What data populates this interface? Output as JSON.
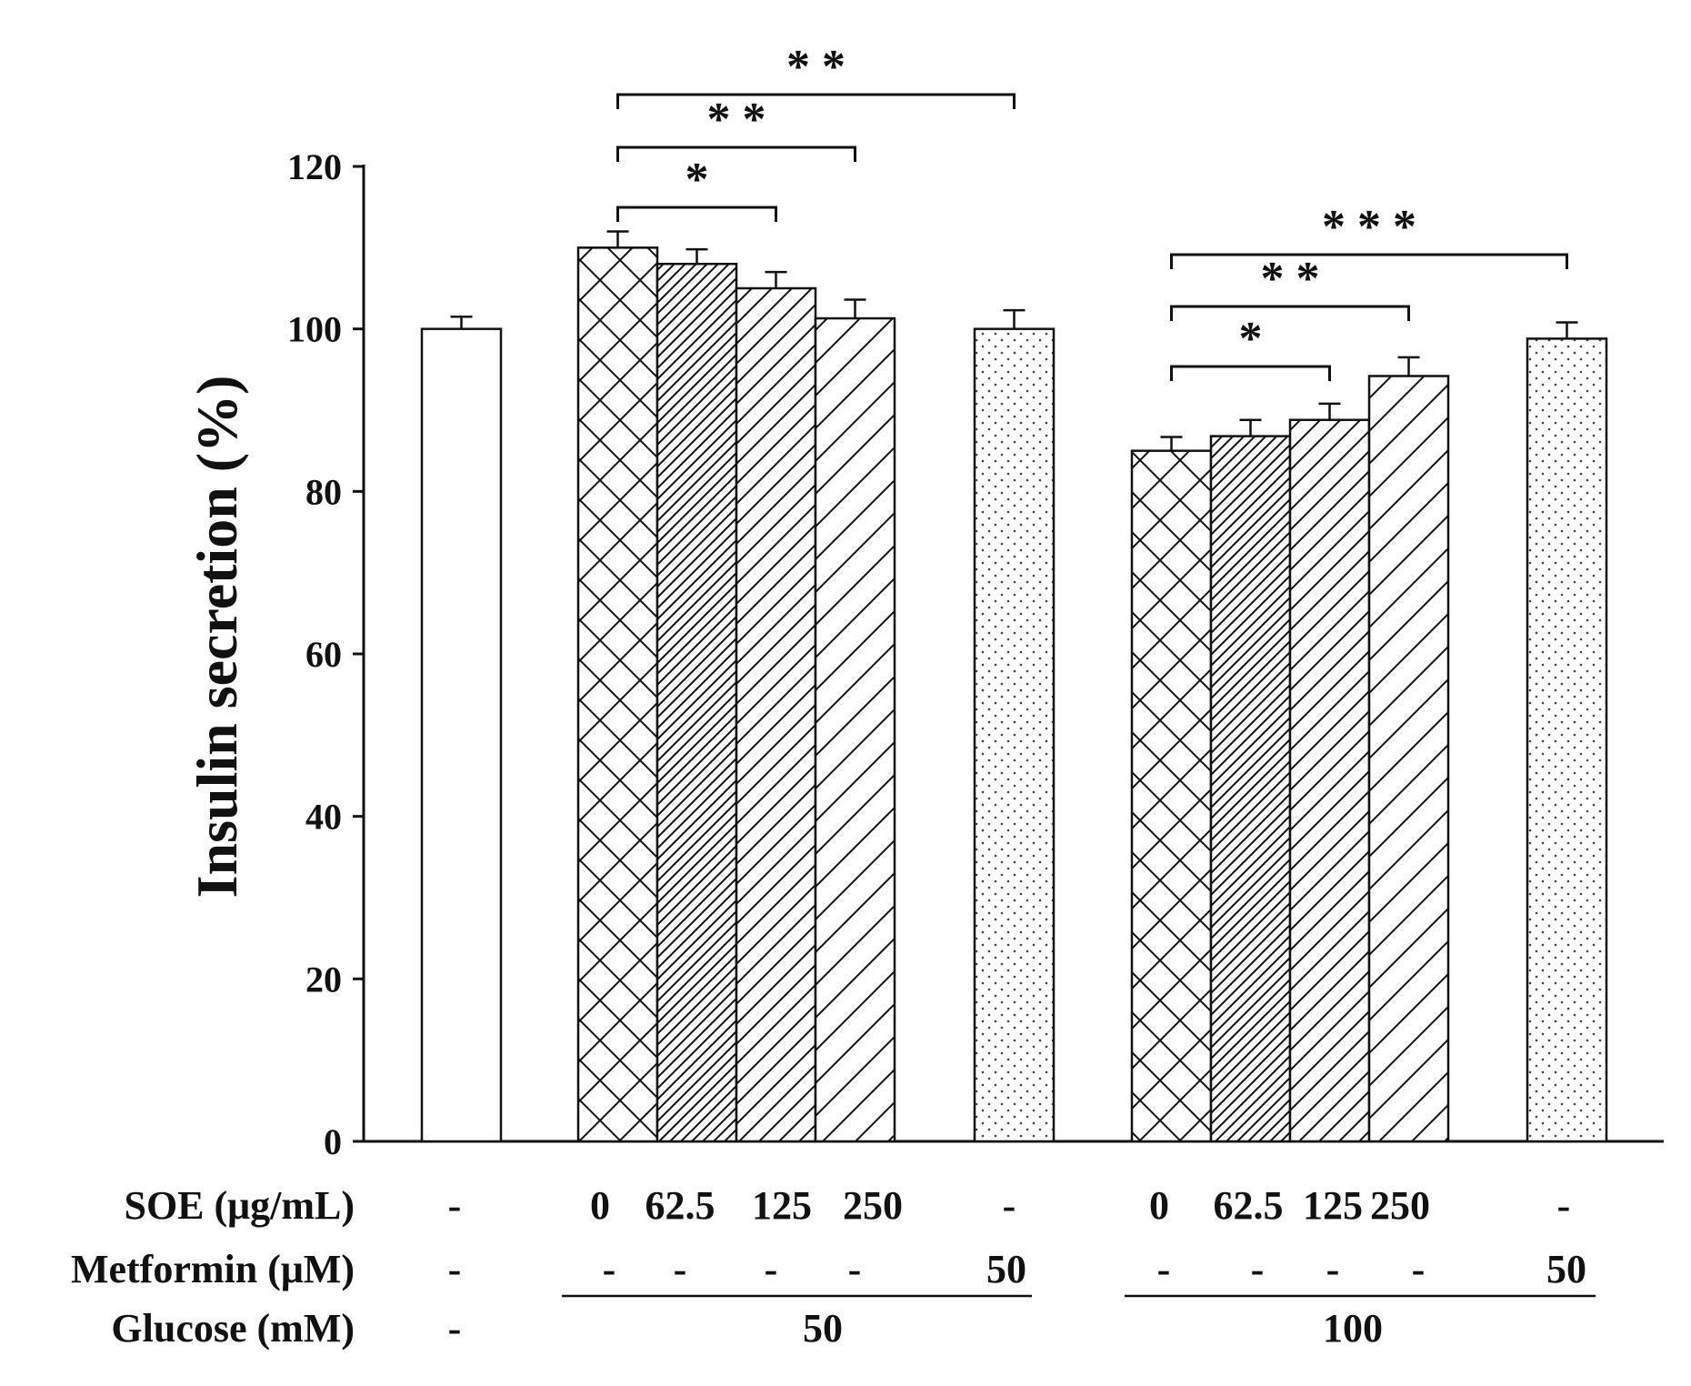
{
  "chart_data": {
    "type": "bar",
    "title": "",
    "xlabel": "",
    "ylabel": "Insulin secretion (%)",
    "ylim": [
      0,
      120
    ],
    "yticks": [
      0,
      20,
      40,
      60,
      80,
      100,
      120
    ],
    "grid": false,
    "bars": [
      {
        "id": "control",
        "value": 100.0,
        "error": 1.5,
        "pattern": "white"
      },
      {
        "id": "g50-soe0",
        "value": 110.0,
        "error": 2.0,
        "pattern": "crosshatch"
      },
      {
        "id": "g50-soe62.5",
        "value": 108.0,
        "error": 1.8,
        "pattern": "dense-diagonal"
      },
      {
        "id": "g50-soe125",
        "value": 105.0,
        "error": 2.0,
        "pattern": "diagonal"
      },
      {
        "id": "g50-soe250",
        "value": 101.3,
        "error": 2.3,
        "pattern": "sparse-diagonal"
      },
      {
        "id": "g50-metformin",
        "value": 100.0,
        "error": 2.3,
        "pattern": "dots"
      },
      {
        "id": "g100-soe0",
        "value": 85.0,
        "error": 1.7,
        "pattern": "crosshatch"
      },
      {
        "id": "g100-soe62.5",
        "value": 86.8,
        "error": 2.0,
        "pattern": "dense-diagonal"
      },
      {
        "id": "g100-soe125",
        "value": 88.8,
        "error": 2.0,
        "pattern": "diagonal"
      },
      {
        "id": "g100-soe250",
        "value": 94.2,
        "error": 2.3,
        "pattern": "sparse-diagonal"
      },
      {
        "id": "g100-metformin",
        "value": 98.8,
        "error": 2.0,
        "pattern": "dots"
      }
    ],
    "conditions": {
      "soe_label": "SOE (μg/mL)",
      "soe": [
        "-",
        "0",
        "62.5",
        "125",
        "250",
        "-",
        "0",
        "62.5",
        "125",
        "250",
        "-"
      ],
      "metformin_label": "Metformin (μM)",
      "metformin": [
        "-",
        "-",
        "-",
        "-",
        "-",
        "50",
        "-",
        "-",
        "-",
        "-",
        "50"
      ],
      "glucose_label": "Glucose (mM)",
      "glucose_control": "-",
      "glucose_groups": [
        {
          "label": "50",
          "from": 1,
          "to": 5
        },
        {
          "label": "100",
          "from": 6,
          "to": 10
        }
      ]
    },
    "significance": [
      {
        "from": 1,
        "to": 3,
        "label": "*"
      },
      {
        "from": 1,
        "to": 4,
        "label": "**"
      },
      {
        "from": 1,
        "to": 5,
        "label": "**"
      },
      {
        "from": 6,
        "to": 8,
        "label": "*"
      },
      {
        "from": 6,
        "to": 9,
        "label": "**"
      },
      {
        "from": 6,
        "to": 10,
        "label": "***"
      }
    ]
  }
}
